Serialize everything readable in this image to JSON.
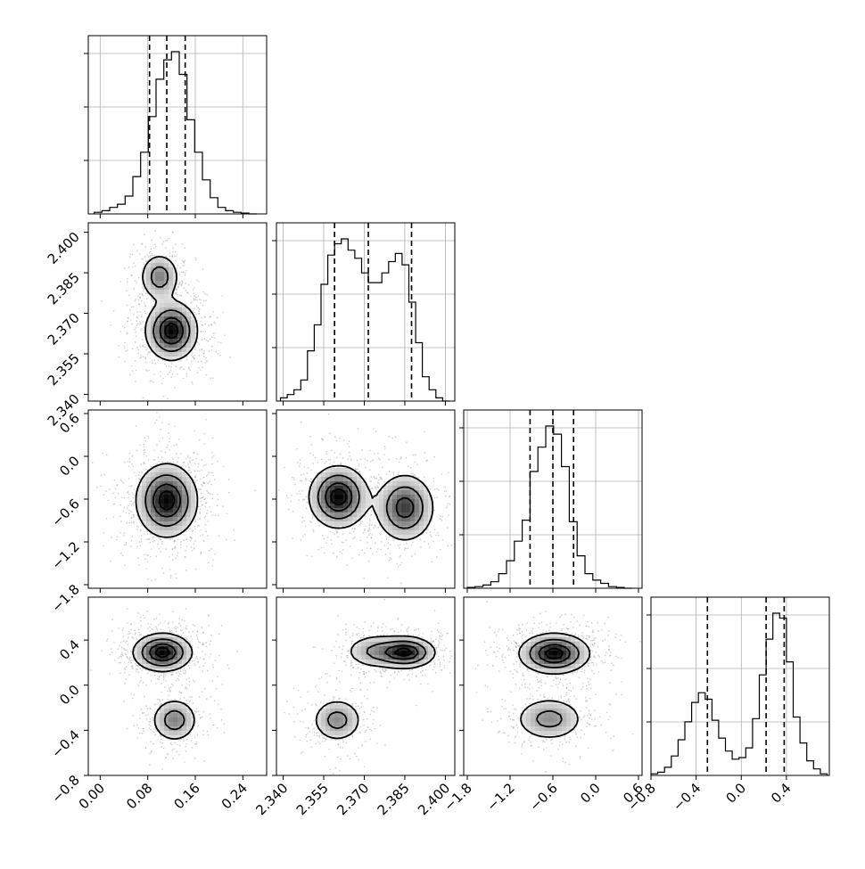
{
  "chart_data": {
    "type": "corner",
    "parameters": [
      {
        "range": [
          -0.02,
          0.28
        ],
        "ticks": [
          0.0,
          0.08,
          0.16,
          0.24
        ],
        "tick_labels": [
          "0.00",
          "0.08",
          "0.16",
          "0.24"
        ],
        "quantiles": [
          0.083,
          0.112,
          0.143
        ],
        "histogram": {
          "edges": [
            -0.01,
            0.003,
            0.016,
            0.029,
            0.042,
            0.055,
            0.068,
            0.081,
            0.094,
            0.107,
            0.12,
            0.133,
            0.146,
            0.159,
            0.172,
            0.185,
            0.198,
            0.211,
            0.224,
            0.237,
            0.25,
            0.263
          ],
          "counts": [
            0.01,
            0.02,
            0.04,
            0.06,
            0.11,
            0.23,
            0.38,
            0.6,
            0.83,
            0.95,
            1.0,
            0.86,
            0.58,
            0.38,
            0.21,
            0.1,
            0.04,
            0.02,
            0.01,
            0.005,
            0.0
          ]
        }
      },
      {
        "range": [
          2.3375,
          2.4035
        ],
        "ticks": [
          2.34,
          2.355,
          2.37,
          2.385,
          2.4
        ],
        "tick_labels": [
          "2.340",
          "2.355",
          "2.370",
          "2.385",
          "2.400"
        ],
        "quantiles": [
          2.359,
          2.3715,
          2.3875
        ],
        "histogram": {
          "edges": [
            2.339,
            2.3415,
            2.344,
            2.3465,
            2.349,
            2.3515,
            2.354,
            2.3565,
            2.359,
            2.3615,
            2.364,
            2.3665,
            2.369,
            2.3715,
            2.374,
            2.3765,
            2.379,
            2.3815,
            2.384,
            2.3865,
            2.389,
            2.3915,
            2.394,
            2.3965,
            2.399,
            2.4015
          ],
          "counts": [
            0.02,
            0.04,
            0.07,
            0.13,
            0.31,
            0.47,
            0.72,
            0.9,
            0.97,
            1.0,
            0.93,
            0.88,
            0.79,
            0.73,
            0.73,
            0.79,
            0.86,
            0.91,
            0.84,
            0.61,
            0.36,
            0.15,
            0.07,
            0.02,
            0.0
          ]
        }
      },
      {
        "range": [
          -1.85,
          0.65
        ],
        "ticks": [
          -1.8,
          -1.2,
          -0.6,
          0.0,
          0.6
        ],
        "tick_labels": [
          "−1.8",
          "−1.2",
          "−0.6",
          "0.0",
          "0.6"
        ],
        "quantiles": [
          -0.92,
          -0.6,
          -0.31
        ],
        "histogram": {
          "edges": [
            -1.8,
            -1.69,
            -1.58,
            -1.47,
            -1.36,
            -1.25,
            -1.14,
            -1.03,
            -0.92,
            -0.81,
            -0.7,
            -0.59,
            -0.48,
            -0.37,
            -0.26,
            -0.15,
            -0.04,
            0.07,
            0.18,
            0.29,
            0.4,
            0.51
          ],
          "counts": [
            0.005,
            0.01,
            0.02,
            0.04,
            0.09,
            0.17,
            0.29,
            0.42,
            0.72,
            0.87,
            1.0,
            0.95,
            0.75,
            0.41,
            0.2,
            0.09,
            0.05,
            0.03,
            0.01,
            0.005,
            0.0
          ]
        }
      },
      {
        "range": [
          -0.8,
          0.78
        ],
        "ticks": [
          -0.8,
          -0.4,
          0.0,
          0.4
        ],
        "tick_labels": [
          "−0.8",
          "−0.4",
          "0.0",
          "0.4"
        ],
        "quantiles": [
          -0.3,
          0.22,
          0.38
        ],
        "histogram": {
          "edges": [
            -0.8,
            -0.74,
            -0.68,
            -0.62,
            -0.56,
            -0.5,
            -0.44,
            -0.38,
            -0.32,
            -0.26,
            -0.2,
            -0.14,
            -0.08,
            -0.02,
            0.04,
            0.1,
            0.16,
            0.22,
            0.28,
            0.34,
            0.4,
            0.46,
            0.52,
            0.58,
            0.64,
            0.7,
            0.76
          ],
          "counts": [
            0.01,
            0.02,
            0.05,
            0.12,
            0.22,
            0.33,
            0.45,
            0.51,
            0.47,
            0.34,
            0.23,
            0.15,
            0.1,
            0.11,
            0.17,
            0.35,
            0.62,
            0.84,
            1.0,
            0.97,
            0.7,
            0.36,
            0.2,
            0.09,
            0.04,
            0.01
          ]
        }
      }
    ],
    "pairs": [
      {
        "row": 1,
        "col": 0,
        "modes": [
          {
            "x": 0.1,
            "y": 2.3835,
            "sx": 0.017,
            "sy": 0.0045,
            "w": 0.55
          },
          {
            "x": 0.12,
            "y": 2.3635,
            "sx": 0.022,
            "sy": 0.0055,
            "w": 1.0
          }
        ]
      },
      {
        "row": 2,
        "col": 0,
        "modes": [
          {
            "x": 0.112,
            "y": -0.62,
            "sx": 0.026,
            "sy": 0.26,
            "w": 1.0
          }
        ]
      },
      {
        "row": 2,
        "col": 1,
        "modes": [
          {
            "x": 2.3605,
            "y": -0.57,
            "sx": 0.0055,
            "sy": 0.22,
            "w": 1.0
          },
          {
            "x": 2.385,
            "y": -0.72,
            "sx": 0.0055,
            "sy": 0.24,
            "w": 0.8
          }
        ]
      },
      {
        "row": 3,
        "col": 0,
        "modes": [
          {
            "x": 0.105,
            "y": 0.29,
            "sx": 0.025,
            "sy": 0.085,
            "w": 1.0
          },
          {
            "x": 0.125,
            "y": -0.31,
            "sx": 0.02,
            "sy": 0.1,
            "w": 0.55
          }
        ]
      },
      {
        "row": 3,
        "col": 1,
        "modes": [
          {
            "x": 2.3855,
            "y": 0.29,
            "sx": 0.0055,
            "sy": 0.07,
            "w": 1.0
          },
          {
            "x": 2.374,
            "y": 0.3,
            "sx": 0.006,
            "sy": 0.08,
            "w": 0.45
          },
          {
            "x": 2.36,
            "y": -0.31,
            "sx": 0.0048,
            "sy": 0.1,
            "w": 0.55
          }
        ]
      },
      {
        "row": 3,
        "col": 2,
        "modes": [
          {
            "x": -0.58,
            "y": 0.28,
            "sx": 0.25,
            "sy": 0.09,
            "w": 1.0
          },
          {
            "x": -0.65,
            "y": -0.3,
            "sx": 0.25,
            "sy": 0.1,
            "w": 0.5
          }
        ]
      }
    ]
  }
}
